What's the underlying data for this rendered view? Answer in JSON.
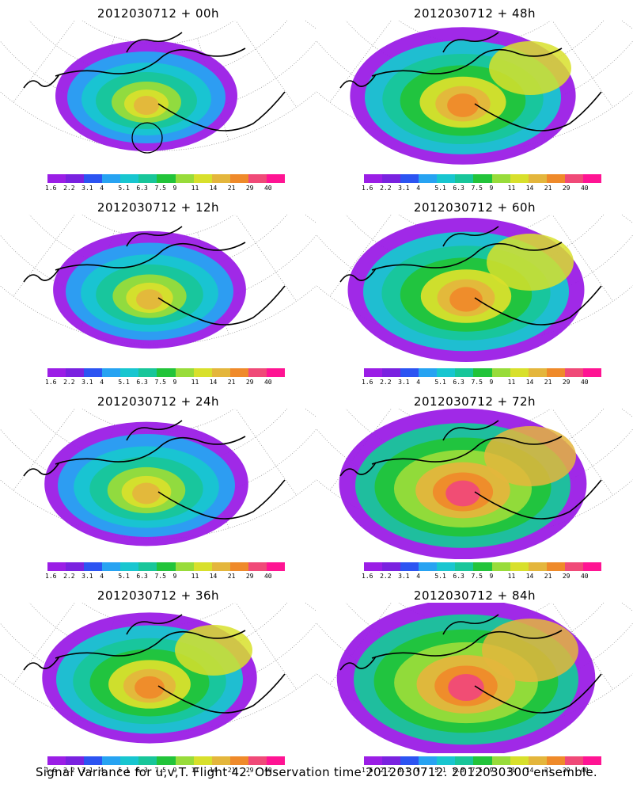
{
  "colorbar": {
    "colors": [
      "#9b1ee6",
      "#7a22e0",
      "#2c54f2",
      "#27a3f2",
      "#18c6d0",
      "#18c69a",
      "#22c43a",
      "#98dc3a",
      "#d8e02c",
      "#e4b63c",
      "#ef8a2a",
      "#f04a78",
      "#ff1493"
    ],
    "labels": [
      "1.6",
      "2.2",
      "3.1",
      "4",
      "5.1",
      "6.3",
      "7.5",
      "9",
      "11",
      "14",
      "21",
      "29",
      "40"
    ]
  },
  "panels": [
    {
      "title": "2012030712 + 00h",
      "level": 0
    },
    {
      "title": "2012030712 + 48h",
      "level": 4
    },
    {
      "title": "2012030712 + 12h",
      "level": 1
    },
    {
      "title": "2012030712 + 60h",
      "level": 5
    },
    {
      "title": "2012030712 + 24h",
      "level": 2
    },
    {
      "title": "2012030712 + 72h",
      "level": 6
    },
    {
      "title": "2012030712 + 36h",
      "level": 3
    },
    {
      "title": "2012030712 + 84h",
      "level": 7
    }
  ],
  "footer": "Signal Variance for u,v,T. Flight 42. Observation time 2012030712. 2012030300 ensemble."
}
